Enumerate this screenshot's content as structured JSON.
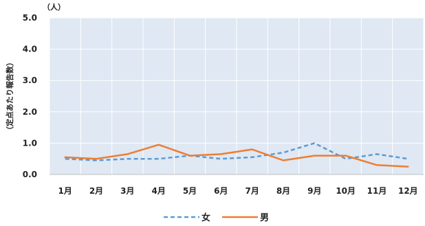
{
  "chart_data": {
    "type": "line",
    "unit_label": "（人）",
    "ylabel": "（定点あたり報告数）",
    "xlabel": "",
    "categories": [
      "1月",
      "2月",
      "3月",
      "4月",
      "5月",
      "6月",
      "7月",
      "8月",
      "9月",
      "10月",
      "11月",
      "12月"
    ],
    "ylim": [
      0,
      5
    ],
    "yticks": [
      "0.0",
      "1.0",
      "2.0",
      "3.0",
      "4.0",
      "5.0"
    ],
    "grid": true,
    "legend_position": "bottom",
    "plot_background": "#dfe8f3",
    "series": [
      {
        "name": "女",
        "color": "#5b9bd5",
        "dash": "dashed",
        "values": [
          0.5,
          0.45,
          0.5,
          0.5,
          0.6,
          0.5,
          0.55,
          0.7,
          1.0,
          0.5,
          0.65,
          0.5
        ]
      },
      {
        "name": "男",
        "color": "#ed7d31",
        "dash": "solid",
        "values": [
          0.55,
          0.5,
          0.65,
          0.95,
          0.6,
          0.65,
          0.8,
          0.45,
          0.6,
          0.6,
          0.3,
          0.25
        ]
      }
    ]
  }
}
